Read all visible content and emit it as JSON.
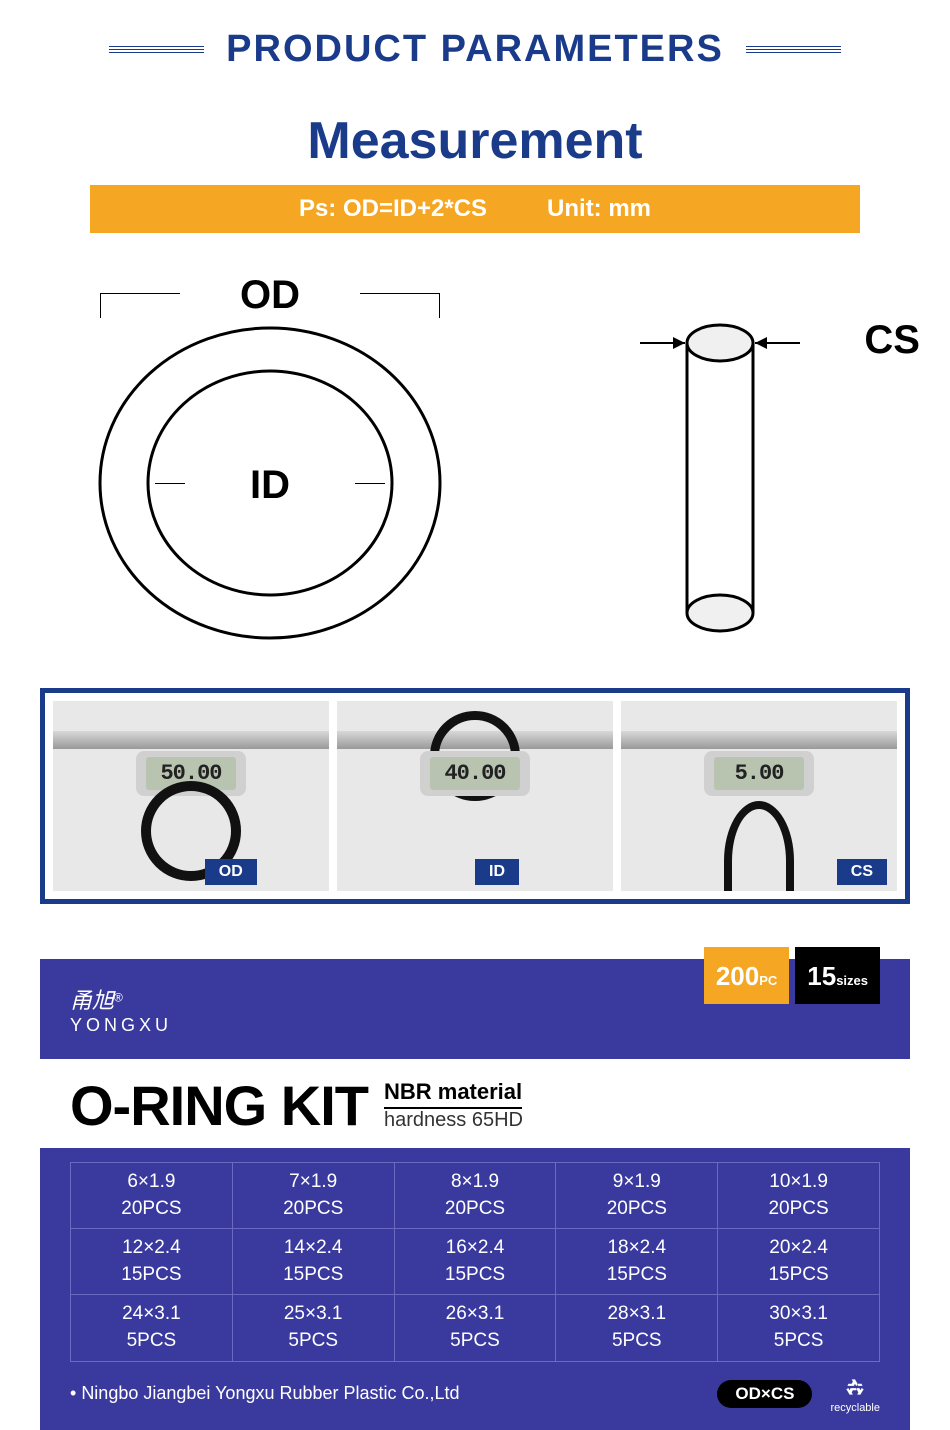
{
  "header": {
    "title": "PRODUCT PARAMETERS"
  },
  "measurement": {
    "title": "Measurement",
    "formula": "Ps: OD=ID+2*CS",
    "unit": "Unit: mm",
    "labels": {
      "od": "OD",
      "id": "ID",
      "cs": "CS"
    }
  },
  "calipers": [
    {
      "reading": "50.00",
      "label": "OD"
    },
    {
      "reading": "40.00",
      "label": "ID"
    },
    {
      "reading": "5.00",
      "label": "CS"
    }
  ],
  "kit": {
    "brand_cn": "甬旭",
    "brand_en": "YONGXU",
    "tags": [
      {
        "value": "200",
        "unit": "PC",
        "color": "orange"
      },
      {
        "value": "15",
        "unit": "sizes",
        "color": "black"
      }
    ],
    "title": "O-RING KIT",
    "material_line1": "NBR material",
    "material_line2": "hardness 65HD",
    "sizes": [
      [
        {
          "size": "6×1.9",
          "qty": "20PCS"
        },
        {
          "size": "7×1.9",
          "qty": "20PCS"
        },
        {
          "size": "8×1.9",
          "qty": "20PCS"
        },
        {
          "size": "9×1.9",
          "qty": "20PCS"
        },
        {
          "size": "10×1.9",
          "qty": "20PCS"
        }
      ],
      [
        {
          "size": "12×2.4",
          "qty": "15PCS"
        },
        {
          "size": "14×2.4",
          "qty": "15PCS"
        },
        {
          "size": "16×2.4",
          "qty": "15PCS"
        },
        {
          "size": "18×2.4",
          "qty": "15PCS"
        },
        {
          "size": "20×2.4",
          "qty": "15PCS"
        }
      ],
      [
        {
          "size": "24×3.1",
          "qty": "5PCS"
        },
        {
          "size": "25×3.1",
          "qty": "5PCS"
        },
        {
          "size": "26×3.1",
          "qty": "5PCS"
        },
        {
          "size": "28×3.1",
          "qty": "5PCS"
        },
        {
          "size": "30×3.1",
          "qty": "5PCS"
        }
      ]
    ],
    "company": "Ningbo Jiangbei Yongxu Rubber Plastic Co.,Ltd",
    "odcs_label": "OD×CS",
    "recyclable_label": "recyclable"
  },
  "colors": {
    "brand_blue": "#1a3a8a",
    "kit_blue": "#3a3a9e",
    "orange": "#f5a623",
    "black": "#000000",
    "white": "#ffffff"
  }
}
